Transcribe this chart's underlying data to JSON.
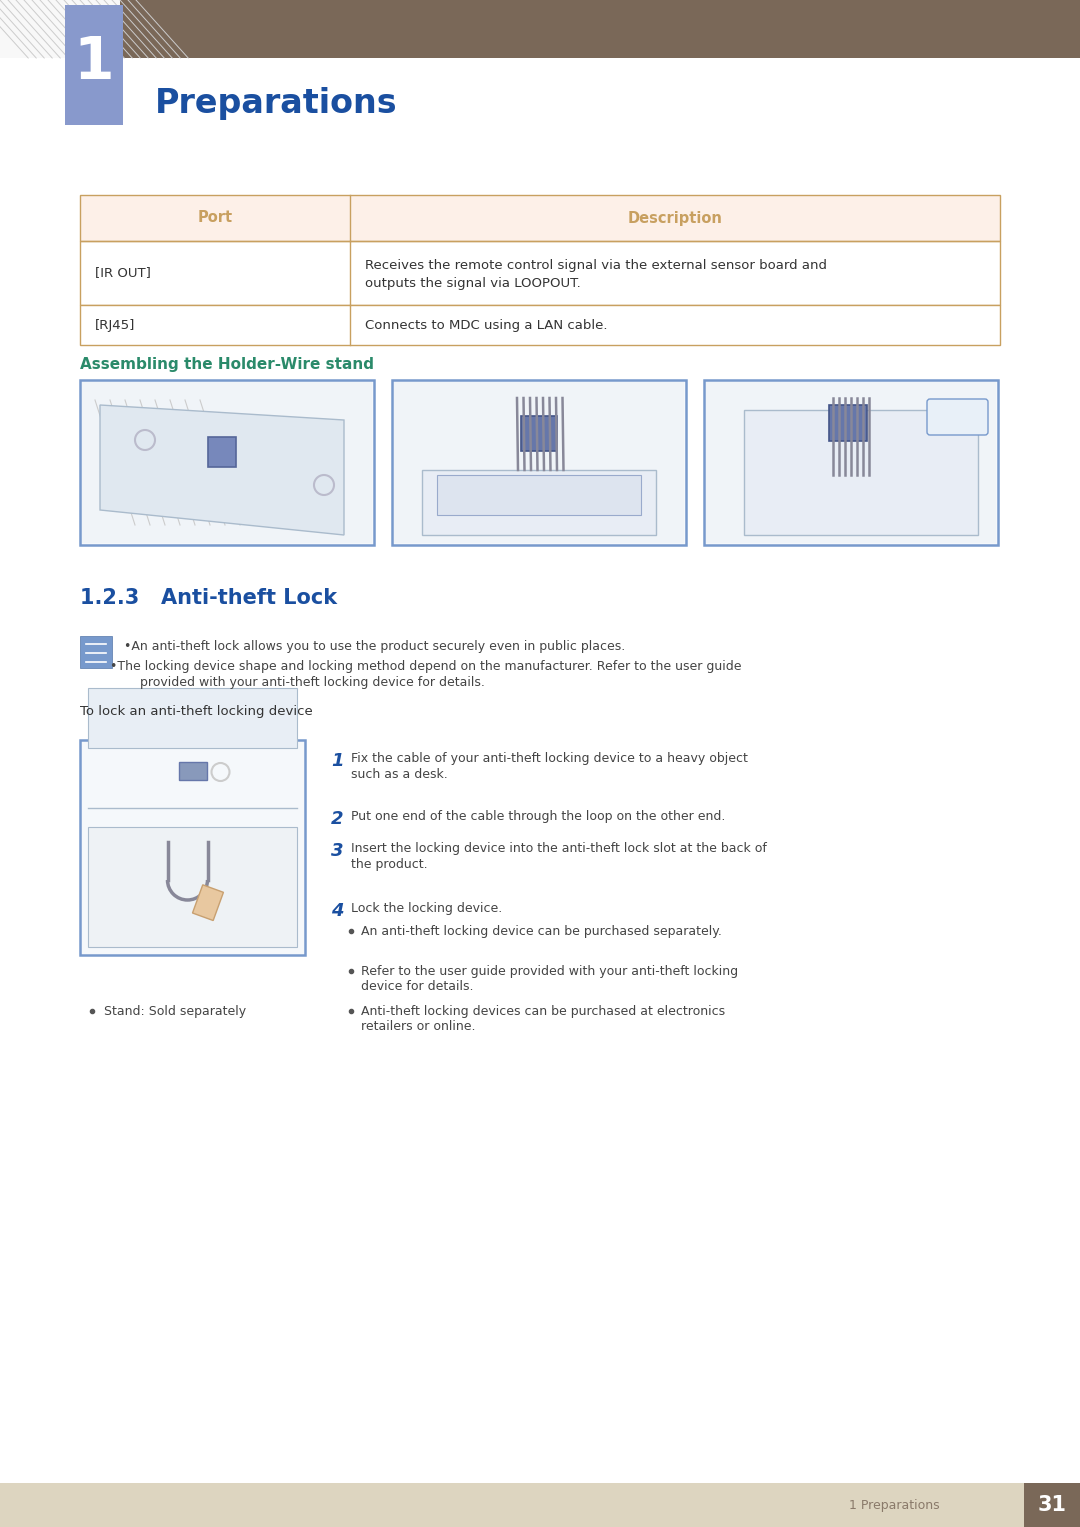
{
  "page_bg": "#ffffff",
  "header_bar_color": "#7a6858",
  "chapter_box_color": "#8899cc",
  "chapter_num": "1",
  "chapter_title": "Preparations",
  "chapter_title_color": "#1a4fa0",
  "chapter_title_fontsize": 24,
  "table_header_bg": "#fdf0e8",
  "table_border_color": "#c8a060",
  "table_header_text_color": "#c8a060",
  "table_col1_header": "Port",
  "table_col2_header": "Description",
  "table_row1_col1": "[IR OUT]",
  "table_row1_col2_line1": "Receives the remote control signal via the external sensor board and",
  "table_row1_col2_line2": "outputs the signal via LOOPOUT.",
  "table_row2_col1": "[RJ45]",
  "table_row2_col2": "Connects to MDC using a LAN cable.",
  "table_text_color": "#333333",
  "table_text_fontsize": 9.5,
  "section_wire_title": "Assembling the Holder-Wire stand",
  "section_wire_title_color": "#2a8a6a",
  "section_wire_title_fontsize": 11,
  "section_antitheft_number": "1.2.3",
  "section_antitheft_title": "Anti-theft Lock",
  "section_antitheft_color": "#1a4fa0",
  "section_antitheft_fontsize": 15,
  "note_text1": "•An anti-theft lock allows you to use the product securely even in public places.",
  "note_text2a": "•The locking device shape and locking method depend on the manufacturer. Refer to the user guide",
  "note_text2b": "   provided with your anti-theft locking device for details.",
  "note_text_color": "#444444",
  "note_text_fontsize": 9,
  "lock_instruction_header": "To lock an anti-theft locking device",
  "lock_instruction_header_color": "#333333",
  "lock_instruction_header_fontsize": 9.5,
  "step1_num": "1",
  "step1_text1": "Fix the cable of your anti-theft locking device to a heavy object",
  "step1_text2": "such as a desk.",
  "step2_num": "2",
  "step2_text": "Put one end of the cable through the loop on the other end.",
  "step3_num": "3",
  "step3_text1": "Insert the locking device into the anti-theft lock slot at the back of",
  "step3_text2": "the product.",
  "step4_num": "4",
  "step4_text": "Lock the locking device.",
  "bullet1": "An anti-theft locking device can be purchased separately.",
  "bullet2a": "Refer to the user guide provided with your anti-theft locking",
  "bullet2b": "device for details.",
  "bullet3a": "Anti-theft locking devices can be purchased at electronics",
  "bullet3b": "retailers or online.",
  "final_bullet": "Stand: Sold separately",
  "step_num_color": "#1a4fa0",
  "step_text_color": "#444444",
  "step_fontsize": 9,
  "bullet_dot_color": "#555555",
  "footer_bg": "#ddd5c0",
  "footer_text": "1 Preparations",
  "footer_num": "31",
  "footer_num_bg": "#7a6858",
  "footer_text_color": "#8a7a6a",
  "footer_num_color": "#ffffff",
  "footer_fontsize": 9,
  "img_border_color": "#7799cc",
  "img_border_color2": "#99bbdd",
  "diagonal_line_color": "#cccccc",
  "diag_bg": "#f8f8f8"
}
